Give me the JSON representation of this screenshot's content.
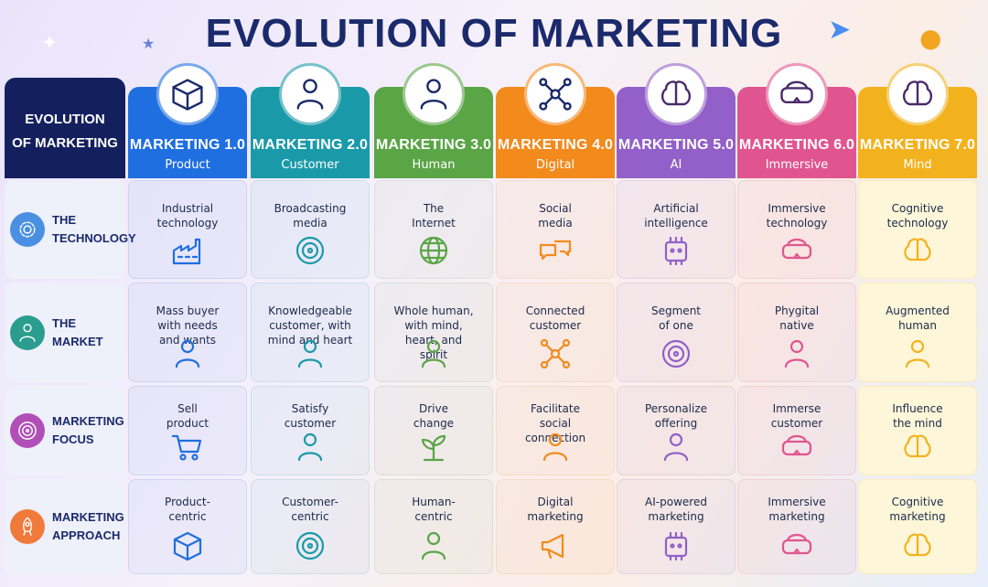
{
  "title": "EVOLUTION OF MARKETING",
  "corner_label": [
    "EVOLUTION",
    "OF MARKETING"
  ],
  "columns": [
    {
      "title": "MARKETING 1.0",
      "subtitle": "Product",
      "color": "#1f6fe0",
      "icon": "box-icon"
    },
    {
      "title": "MARKETING 2.0",
      "subtitle": "Customer",
      "color": "#1a9aa8",
      "icon": "people-icon"
    },
    {
      "title": "MARKETING 3.0",
      "subtitle": "Human",
      "color": "#5aa546",
      "icon": "person-heart-icon"
    },
    {
      "title": "MARKETING 4.0",
      "subtitle": "Digital",
      "color": "#f28a1c",
      "icon": "smartphone-network-icon"
    },
    {
      "title": "MARKETING 5.0",
      "subtitle": "AI",
      "color": "#9260c8",
      "icon": "circuit-brain-icon"
    },
    {
      "title": "MARKETING 6.0",
      "subtitle": "Immersive",
      "color": "#e0558f",
      "icon": "immersive-person-icon"
    },
    {
      "title": "MARKETING 7.0",
      "subtitle": "Mind",
      "color": "#f2b21e",
      "icon": "brain-icon"
    }
  ],
  "rows": [
    {
      "label": [
        "THE",
        "TECHNOLOGY"
      ],
      "icon": "gear-icon",
      "color": "#4a90e2",
      "cells": [
        {
          "text": [
            "Industrial",
            "technology"
          ],
          "icon": "factory-icon"
        },
        {
          "text": [
            "Broadcasting",
            "media"
          ],
          "icon": "antenna-icon"
        },
        {
          "text": [
            "The",
            "Internet"
          ],
          "icon": "globe-icon"
        },
        {
          "text": [
            "Social",
            "media"
          ],
          "icon": "chat-bubbles-icon"
        },
        {
          "text": [
            "Artificial",
            "intelligence"
          ],
          "icon": "ai-chip-icon"
        },
        {
          "text": [
            "Immersive",
            "technology"
          ],
          "icon": "vr-headset-icon"
        },
        {
          "text": [
            "Cognitive",
            "technology"
          ],
          "icon": "head-brain-icon"
        }
      ]
    },
    {
      "label": [
        "THE",
        "MARKET"
      ],
      "icon": "user-icon",
      "color": "#2a9d8f",
      "cells": [
        {
          "text": [
            "Mass buyer",
            "with needs",
            "and wants"
          ],
          "icon": "crowd-icon"
        },
        {
          "text": [
            "Knowledgeable",
            "customer, with",
            "mind and heart"
          ],
          "icon": "person-heart-icon"
        },
        {
          "text": [
            "Whole human,",
            "with mind,",
            "heart, and",
            "spirit"
          ],
          "icon": "meditation-icon"
        },
        {
          "text": [
            "Connected",
            "customer"
          ],
          "icon": "network-icon"
        },
        {
          "text": [
            "Segment",
            "of one"
          ],
          "icon": "target-user-icon"
        },
        {
          "text": [
            "Phygital",
            "native"
          ],
          "icon": "phone-person-icon"
        },
        {
          "text": [
            "Augmented",
            "human"
          ],
          "icon": "glowing-person-icon"
        }
      ]
    },
    {
      "label": [
        "MARKETING",
        "FOCUS"
      ],
      "icon": "target-icon",
      "color": "#b04fb8",
      "cells": [
        {
          "text": [
            "Sell",
            "product"
          ],
          "icon": "cart-icon"
        },
        {
          "text": [
            "Satisfy",
            "customer"
          ],
          "icon": "smiley-stars-icon"
        },
        {
          "text": [
            "Drive",
            "change"
          ],
          "icon": "sprout-icon"
        },
        {
          "text": [
            "Facilitate",
            "social",
            "connection"
          ],
          "icon": "high-five-icon"
        },
        {
          "text": [
            "Personalize",
            "offering"
          ],
          "icon": "user-sliders-icon"
        },
        {
          "text": [
            "Immerse",
            "customer"
          ],
          "icon": "immersion-icon"
        },
        {
          "text": [
            "Influence",
            "the mind"
          ],
          "icon": "head-brain-icon"
        }
      ]
    },
    {
      "label": [
        "MARKETING",
        "APPROACH"
      ],
      "icon": "rocket-icon",
      "color": "#f07a3a",
      "cells": [
        {
          "text": [
            "Product-",
            "centric"
          ],
          "icon": "box-icon"
        },
        {
          "text": [
            "Customer-",
            "centric"
          ],
          "icon": "target-user-icon"
        },
        {
          "text": [
            "Human-",
            "centric"
          ],
          "icon": "group-icon"
        },
        {
          "text": [
            "Digital",
            "marketing"
          ],
          "icon": "megaphone-icon"
        },
        {
          "text": [
            "AI-powered",
            "marketing"
          ],
          "icon": "robot-icon"
        },
        {
          "text": [
            "Immersive",
            "marketing"
          ],
          "icon": "vr-headset-icon"
        },
        {
          "text": [
            "Cognitive",
            "marketing"
          ],
          "icon": "brain-icon"
        }
      ]
    }
  ]
}
